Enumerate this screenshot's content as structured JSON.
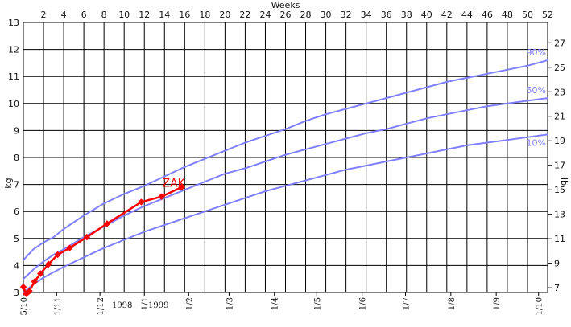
{
  "chart_data": {
    "type": "line",
    "top_axis_title": "Weeks",
    "left_axis_title": "kg",
    "right_axis_title": "lb",
    "weeks_range": [
      0,
      52
    ],
    "week_ticks": [
      "2",
      "4",
      "6",
      "8",
      "10",
      "12",
      "14",
      "16",
      "18",
      "20",
      "22",
      "24",
      "26",
      "28",
      "30",
      "32",
      "34",
      "36",
      "38",
      "40",
      "42",
      "44",
      "46",
      "48",
      "50",
      "52"
    ],
    "kg_range": [
      3,
      13
    ],
    "kg_ticks": [
      "3",
      "4",
      "5",
      "6",
      "7",
      "8",
      "9",
      "10",
      "11",
      "12",
      "13"
    ],
    "lb_ticks": [
      "7",
      "9",
      "11",
      "13",
      "15",
      "17",
      "19",
      "21",
      "23",
      "25",
      "27"
    ],
    "date_labels": [
      {
        "label": "5/10",
        "week": 0
      },
      {
        "label": "1/11",
        "week": 3.3
      },
      {
        "label": "1/12",
        "week": 7.6
      },
      {
        "label": "1/1",
        "week": 12.0
      },
      {
        "label": "1/2",
        "week": 16.4
      },
      {
        "label": "1/3",
        "week": 20.4
      },
      {
        "label": "1/4",
        "week": 24.9
      },
      {
        "label": "1/5",
        "week": 29.1
      },
      {
        "label": "1/6",
        "week": 33.6
      },
      {
        "label": "1/7",
        "week": 37.9
      },
      {
        "label": "1/8",
        "week": 42.4
      },
      {
        "label": "1/9",
        "week": 46.9
      },
      {
        "label": "1/10",
        "week": 51.1
      }
    ],
    "year_labels": [
      {
        "label": "1998",
        "week": 9.8
      },
      {
        "label": "1999",
        "week": 13.4
      }
    ],
    "grid": true,
    "series": [
      {
        "name": "90%",
        "color": "#8080ff",
        "x": [
          0,
          1,
          2,
          3,
          4,
          6,
          8,
          10,
          12,
          14,
          16,
          18,
          20,
          22,
          24,
          26,
          28,
          30,
          32,
          34,
          36,
          38,
          40,
          42,
          44,
          46,
          48,
          50,
          52
        ],
        "y": [
          4.2,
          4.6,
          4.85,
          5.05,
          5.35,
          5.85,
          6.3,
          6.65,
          6.95,
          7.3,
          7.65,
          7.95,
          8.25,
          8.55,
          8.8,
          9.05,
          9.35,
          9.6,
          9.8,
          10.0,
          10.2,
          10.4,
          10.6,
          10.8,
          10.95,
          11.1,
          11.25,
          11.4,
          11.6
        ]
      },
      {
        "name": "50%",
        "color": "#8080ff",
        "x": [
          0,
          1,
          2,
          3,
          4,
          6,
          8,
          10,
          12,
          14,
          16,
          18,
          20,
          22,
          24,
          26,
          28,
          30,
          32,
          34,
          36,
          38,
          40,
          42,
          44,
          46,
          48,
          50,
          52
        ],
        "y": [
          3.5,
          3.85,
          4.15,
          4.4,
          4.6,
          5.05,
          5.45,
          5.85,
          6.2,
          6.5,
          6.8,
          7.1,
          7.4,
          7.6,
          7.85,
          8.1,
          8.3,
          8.5,
          8.7,
          8.9,
          9.05,
          9.25,
          9.45,
          9.6,
          9.75,
          9.9,
          10.0,
          10.1,
          10.2
        ]
      },
      {
        "name": "10%",
        "color": "#8080ff",
        "x": [
          0,
          1,
          2,
          3,
          4,
          6,
          8,
          10,
          12,
          14,
          16,
          18,
          20,
          22,
          24,
          26,
          28,
          30,
          32,
          34,
          36,
          38,
          40,
          42,
          44,
          46,
          48,
          50,
          52
        ],
        "y": [
          3.0,
          3.3,
          3.55,
          3.75,
          3.95,
          4.3,
          4.65,
          4.95,
          5.25,
          5.5,
          5.75,
          6.0,
          6.25,
          6.5,
          6.75,
          6.95,
          7.15,
          7.35,
          7.55,
          7.7,
          7.85,
          8.0,
          8.15,
          8.3,
          8.45,
          8.55,
          8.65,
          8.75,
          8.85
        ]
      },
      {
        "name": "ZAK",
        "color": "#ff0000",
        "markers": true,
        "x": [
          0,
          0.3,
          0.6,
          1.1,
          1.7,
          2.5,
          3.4,
          4.6,
          6.3,
          8.3,
          11.7,
          13.7,
          15.7
        ],
        "y": [
          3.2,
          2.95,
          3.05,
          3.4,
          3.7,
          4.05,
          4.4,
          4.65,
          5.05,
          5.55,
          6.35,
          6.55,
          6.9
        ]
      }
    ]
  }
}
